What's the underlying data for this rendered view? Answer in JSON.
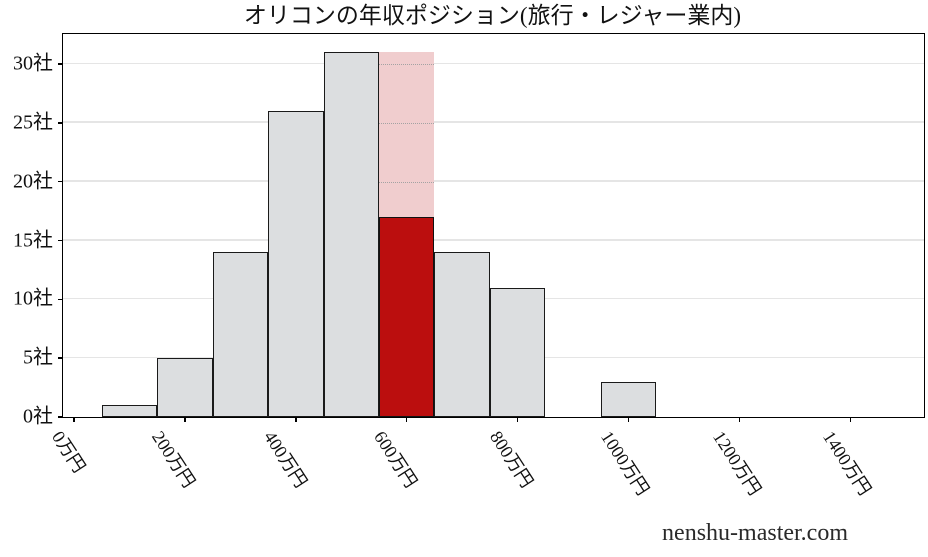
{
  "watermark": "nenshu-master.com",
  "chart_data": {
    "type": "bar",
    "subtype": "histogram",
    "title": "オリコンの年収ポジション(旅行・レジャー業内)",
    "xlabel": "",
    "ylabel": "",
    "x_unit": "万円",
    "y_unit": "社",
    "grid": "horizontal",
    "legend": "none",
    "xlim": [
      -20,
      1533
    ],
    "ylim": [
      0,
      32.55
    ],
    "bin_width": 100,
    "bars": [
      {
        "x_center": 100,
        "count": 1
      },
      {
        "x_center": 200,
        "count": 5
      },
      {
        "x_center": 300,
        "count": 14
      },
      {
        "x_center": 400,
        "count": 26
      },
      {
        "x_center": 500,
        "count": 31
      },
      {
        "x_center": 600,
        "count": 17,
        "highlight": true,
        "band_top": 31
      },
      {
        "x_center": 700,
        "count": 14
      },
      {
        "x_center": 800,
        "count": 11
      },
      {
        "x_center": 1000,
        "count": 3
      }
    ],
    "x_ticks": [
      {
        "value": 0,
        "label": "0万円"
      },
      {
        "value": 200,
        "label": "200万円"
      },
      {
        "value": 400,
        "label": "400万円"
      },
      {
        "value": 600,
        "label": "600万円"
      },
      {
        "value": 800,
        "label": "800万円"
      },
      {
        "value": 1000,
        "label": "1000万円"
      },
      {
        "value": 1200,
        "label": "1200万円"
      },
      {
        "value": 1400,
        "label": "1400万円"
      }
    ],
    "y_ticks": [
      {
        "value": 0,
        "label": "0社"
      },
      {
        "value": 5,
        "label": "5社"
      },
      {
        "value": 10,
        "label": "10社"
      },
      {
        "value": 15,
        "label": "15社"
      },
      {
        "value": 20,
        "label": "20社"
      },
      {
        "value": 25,
        "label": "25社"
      },
      {
        "value": 30,
        "label": "30社"
      }
    ],
    "colors": {
      "bar_fill": "#dcdee0",
      "bar_edge": "#1a1a1a",
      "highlight_fill": "#bb0e0e",
      "highlight_edge": "#111111",
      "band_fill": "#f0cdce",
      "grid_color": "#e5e5e5",
      "band_grid_dotted": "#a3a3a3",
      "axis_color": "#000000"
    }
  }
}
